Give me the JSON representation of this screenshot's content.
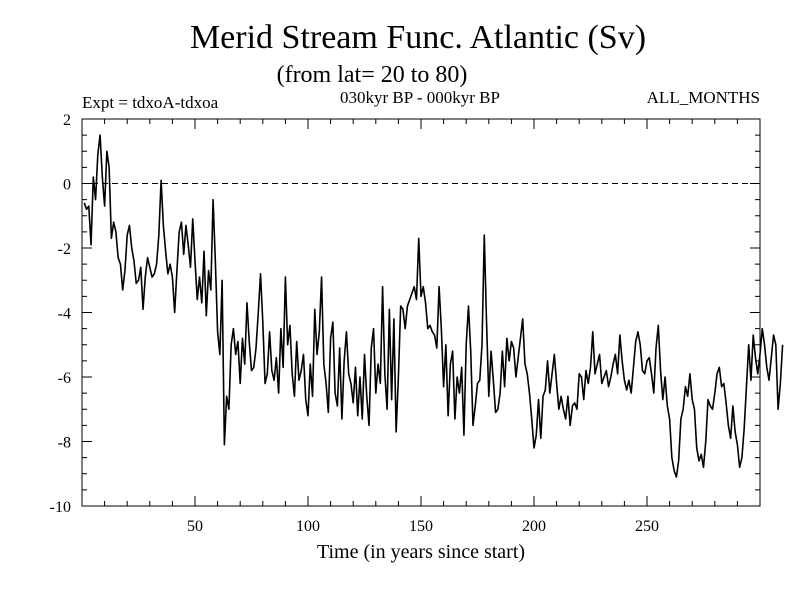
{
  "chart_data": {
    "type": "line",
    "title": "Merid Stream Func. Atlantic (Sv)",
    "subtitle": "(from lat= 20 to 80)",
    "header_left": "Expt = tdxoA-tdxoa",
    "header_center": "030kyr BP - 000kyr BP",
    "header_right": "ALL_MONTHS",
    "xlabel": "Time (in years since start)",
    "ylabel": "",
    "xlim": [
      0,
      300
    ],
    "ylim": [
      -10,
      2
    ],
    "x_ticks": [
      50,
      100,
      150,
      200,
      250
    ],
    "x_tick_labels": [
      "50",
      "100",
      "150",
      "200",
      "250"
    ],
    "y_ticks": [
      -10,
      -8,
      -6,
      -4,
      -2,
      0,
      2
    ],
    "y_tick_labels": [
      "-10",
      "-8",
      "-6",
      "-4",
      "-2",
      "0",
      "2"
    ],
    "zero_line": true,
    "grid": false,
    "x_start": 1,
    "x_step": 1,
    "series": [
      {
        "values": [
          -0.6,
          -0.8,
          -0.7,
          -1.9,
          0.2,
          -0.5,
          0.9,
          1.5,
          0.2,
          -0.7,
          1.0,
          0.5,
          -1.7,
          -1.2,
          -1.5,
          -2.3,
          -2.5,
          -3.3,
          -2.7,
          -1.6,
          -1.3,
          -2.0,
          -2.4,
          -3.1,
          -3.0,
          -2.6,
          -3.9,
          -2.9,
          -2.3,
          -2.6,
          -2.9,
          -2.8,
          -2.5,
          -1.6,
          0.1,
          -1.3,
          -2.1,
          -2.8,
          -2.5,
          -2.9,
          -4.0,
          -2.7,
          -1.5,
          -1.2,
          -2.2,
          -1.3,
          -1.9,
          -2.6,
          -1.1,
          -2.4,
          -3.6,
          -2.9,
          -3.7,
          -2.1,
          -4.1,
          -2.7,
          -3.3,
          -0.5,
          -2.4,
          -4.6,
          -5.3,
          -3.0,
          -8.1,
          -6.6,
          -7.0,
          -5.0,
          -4.5,
          -5.3,
          -4.9,
          -6.2,
          -4.8,
          -5.6,
          -3.7,
          -4.9,
          -5.8,
          -5.7,
          -5.1,
          -4.0,
          -2.8,
          -4.3,
          -6.2,
          -5.9,
          -4.6,
          -5.8,
          -6.1,
          -5.4,
          -6.5,
          -4.5,
          -5.7,
          -2.9,
          -5.0,
          -4.4,
          -5.9,
          -6.6,
          -4.9,
          -6.1,
          -5.8,
          -5.3,
          -6.7,
          -7.2,
          -5.6,
          -6.6,
          -3.9,
          -5.3,
          -4.6,
          -2.9,
          -5.6,
          -6.2,
          -7.1,
          -4.8,
          -4.3,
          -6.5,
          -6.9,
          -5.1,
          -7.3,
          -5.5,
          -4.6,
          -5.9,
          -6.2,
          -6.8,
          -5.7,
          -7.2,
          -6.0,
          -7.3,
          -5.3,
          -6.6,
          -7.5,
          -5.1,
          -4.5,
          -6.5,
          -5.6,
          -6.2,
          -3.2,
          -5.9,
          -7.0,
          -3.9,
          -6.7,
          -4.2,
          -7.7,
          -6.0,
          -3.8,
          -3.9,
          -4.5,
          -3.8,
          -3.6,
          -3.4,
          -3.2,
          -3.6,
          -1.7,
          -3.5,
          -3.2,
          -3.7,
          -4.5,
          -4.4,
          -4.6,
          -4.7,
          -5.1,
          -3.2,
          -4.5,
          -6.3,
          -5.0,
          -7.2,
          -5.6,
          -5.2,
          -7.3,
          -6.0,
          -6.5,
          -5.7,
          -7.8,
          -5.0,
          -3.8,
          -5.2,
          -7.5,
          -6.9,
          -6.2,
          -6.1,
          -5.0,
          -1.6,
          -4.3,
          -6.6,
          -5.2,
          -6.1,
          -7.1,
          -7.0,
          -6.5,
          -5.2,
          -6.3,
          -4.8,
          -5.5,
          -4.9,
          -5.1,
          -6.0,
          -5.4,
          -4.8,
          -4.2,
          -5.6,
          -5.9,
          -6.5,
          -7.3,
          -8.2,
          -7.8,
          -6.7,
          -7.9,
          -6.6,
          -6.4,
          -5.5,
          -6.5,
          -5.9,
          -5.3,
          -6.2,
          -7.0,
          -6.6,
          -7.0,
          -7.3,
          -6.6,
          -7.5,
          -6.9,
          -6.8,
          -7.0,
          -5.9,
          -6.0,
          -6.7,
          -5.8,
          -6.2,
          -5.7,
          -4.6,
          -5.9,
          -5.6,
          -5.3,
          -6.2,
          -6.0,
          -5.8,
          -6.3,
          -6.0,
          -5.6,
          -5.3,
          -5.9,
          -4.7,
          -5.5,
          -6.1,
          -6.4,
          -6.1,
          -6.5,
          -5.7,
          -4.9,
          -4.6,
          -5.0,
          -5.8,
          -5.9,
          -5.5,
          -5.4,
          -5.9,
          -6.5,
          -5.1,
          -4.4,
          -5.8,
          -6.7,
          -6.0,
          -6.9,
          -7.3,
          -8.5,
          -8.9,
          -9.1,
          -8.6,
          -7.3,
          -7.0,
          -6.3,
          -6.6,
          -5.9,
          -6.7,
          -7.0,
          -8.2,
          -8.6,
          -8.4,
          -8.8,
          -8.0,
          -6.7,
          -6.9,
          -7.0,
          -6.5,
          -5.9,
          -5.7,
          -6.3,
          -6.2,
          -6.8,
          -7.5,
          -7.9,
          -6.9,
          -7.7,
          -8.1,
          -8.8,
          -8.5,
          -7.6,
          -6.3,
          -5.0,
          -6.1,
          -4.7,
          -5.4,
          -5.9,
          -5.3,
          -4.5,
          -5.0,
          -5.7,
          -6.1,
          -5.4,
          -4.7,
          -5.0,
          -7.0,
          -6.2,
          -5.0
        ]
      }
    ]
  }
}
